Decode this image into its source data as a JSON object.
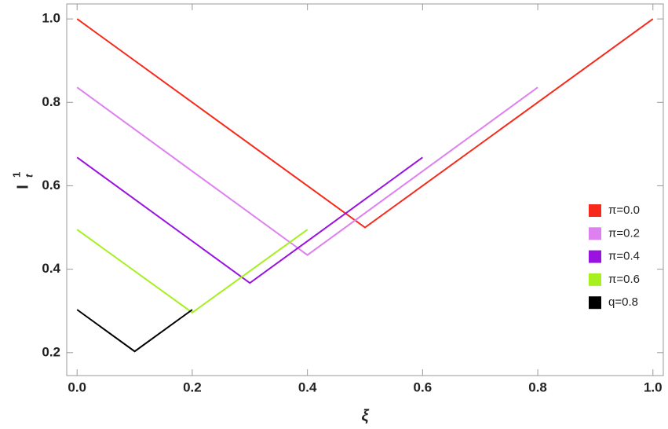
{
  "chart_data": {
    "type": "line",
    "xlabel": "ξ",
    "ylabel": "I",
    "ylabel_sup": "1",
    "ylabel_sub": "t",
    "series": [
      {
        "name": "π=0.0",
        "color": "#f52a1a",
        "x": [
          0,
          0.5,
          1.0
        ],
        "values": [
          1.0,
          0.5,
          1.0
        ]
      },
      {
        "name": "π=0.2",
        "color": "#de80f0",
        "x": [
          0,
          0.4,
          0.8
        ],
        "values": [
          0.836,
          0.434,
          0.836
        ]
      },
      {
        "name": "π=0.4",
        "color": "#9a12e0",
        "x": [
          0,
          0.3,
          0.6
        ],
        "values": [
          0.668,
          0.367,
          0.668
        ]
      },
      {
        "name": "π=0.6",
        "color": "#a6f020",
        "x": [
          0,
          0.2,
          0.4
        ],
        "values": [
          0.495,
          0.296,
          0.495
        ]
      },
      {
        "name": "q=0.8",
        "color": "#000000",
        "x": [
          0,
          0.1,
          0.2
        ],
        "values": [
          0.303,
          0.203,
          0.303
        ]
      }
    ],
    "xlim": [
      -0.018,
      1.018
    ],
    "ylim": [
      0.145,
      1.036
    ],
    "xticks": [
      {
        "value": 0,
        "label": "0.0"
      },
      0.2,
      0.4,
      0.6,
      0.8,
      {
        "value": 1,
        "label": "1.0"
      }
    ],
    "yticks": [
      0.2,
      0.4,
      0.6,
      0.8,
      {
        "value": 1,
        "label": "1.0"
      }
    ],
    "legend": "right"
  }
}
